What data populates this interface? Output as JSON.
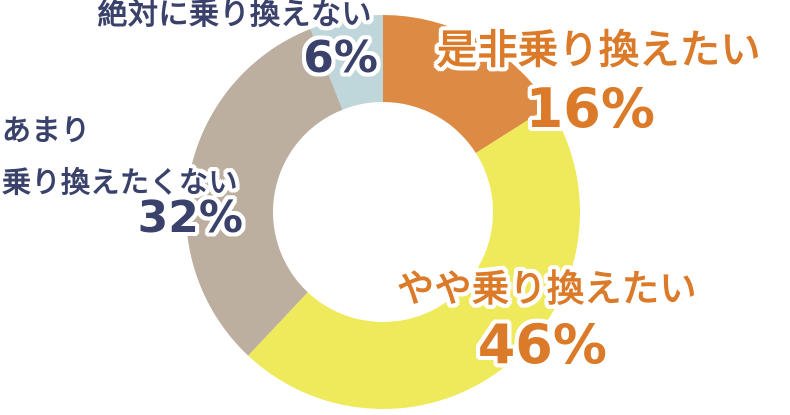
{
  "chart_data": {
    "type": "pie",
    "subtype": "donut",
    "title": "",
    "unit": "%",
    "start_angle_deg": 0,
    "direction": "clockwise",
    "hole_ratio": 0.56,
    "background_color": "#FFFFFF",
    "segments": [
      {
        "label": "是非乗り換えたい",
        "value": 16,
        "percent_label": "16%",
        "color": "#DD8A44",
        "label_color": "#DB7A28"
      },
      {
        "label": "やや乗り換えたい",
        "value": 46,
        "percent_label": "46%",
        "color": "#EFE95C",
        "label_color": "#DB7A28"
      },
      {
        "label": "あまり乗り換えたくない",
        "label_line1": "あまり",
        "label_line2": "乗り換えたくない",
        "value": 32,
        "percent_label": "32%",
        "color": "#BCAFA0",
        "label_color": "#3A426B"
      },
      {
        "label": "絶対に乗り換えない",
        "value": 6,
        "percent_label": "6%",
        "color": "#BFD6DB",
        "label_color": "#3A426B"
      }
    ]
  }
}
